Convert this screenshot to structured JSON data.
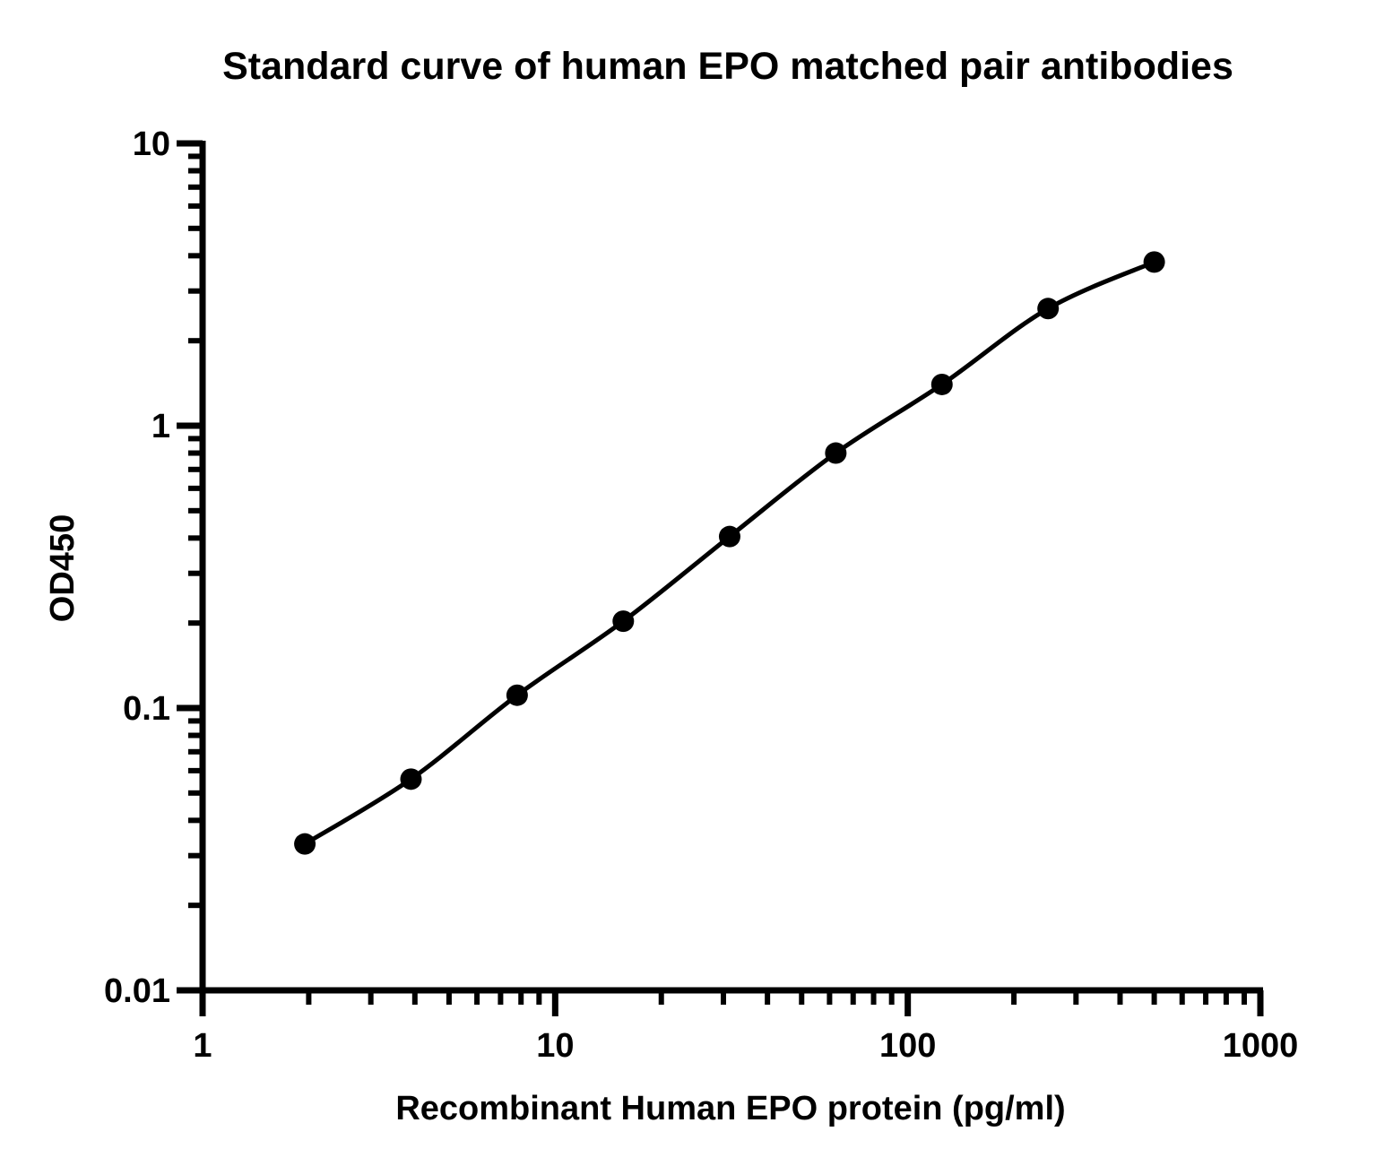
{
  "chart_data": {
    "type": "scatter",
    "title": "Standard curve of human EPO matched pair antibodies",
    "xlabel": "Recombinant Human EPO protein (pg/ml)",
    "ylabel": "OD450",
    "xscale": "log",
    "yscale": "log",
    "xlim": [
      1,
      1000
    ],
    "ylim": [
      0.01,
      10
    ],
    "xticks": [
      {
        "value": 1,
        "label": "1"
      },
      {
        "value": 10,
        "label": "10"
      },
      {
        "value": 100,
        "label": "100"
      },
      {
        "value": 1000,
        "label": "1000"
      }
    ],
    "yticks": [
      {
        "value": 0.01,
        "label": "0.01"
      },
      {
        "value": 0.1,
        "label": "0.1"
      },
      {
        "value": 1,
        "label": "1"
      },
      {
        "value": 10,
        "label": "10"
      }
    ],
    "grid": false,
    "legend": "none",
    "colors": {
      "marker": "#000000",
      "curve": "#000000",
      "axis": "#000000"
    },
    "series": [
      {
        "points": [
          {
            "x": 1.95,
            "y": 0.033
          },
          {
            "x": 3.9,
            "y": 0.056
          },
          {
            "x": 7.8,
            "y": 0.111
          },
          {
            "x": 15.6,
            "y": 0.203
          },
          {
            "x": 31.25,
            "y": 0.405
          },
          {
            "x": 62.5,
            "y": 0.8
          },
          {
            "x": 125,
            "y": 1.4
          },
          {
            "x": 250,
            "y": 2.6
          },
          {
            "x": 500,
            "y": 3.8
          }
        ],
        "fit": "smooth curve through points"
      }
    ]
  }
}
